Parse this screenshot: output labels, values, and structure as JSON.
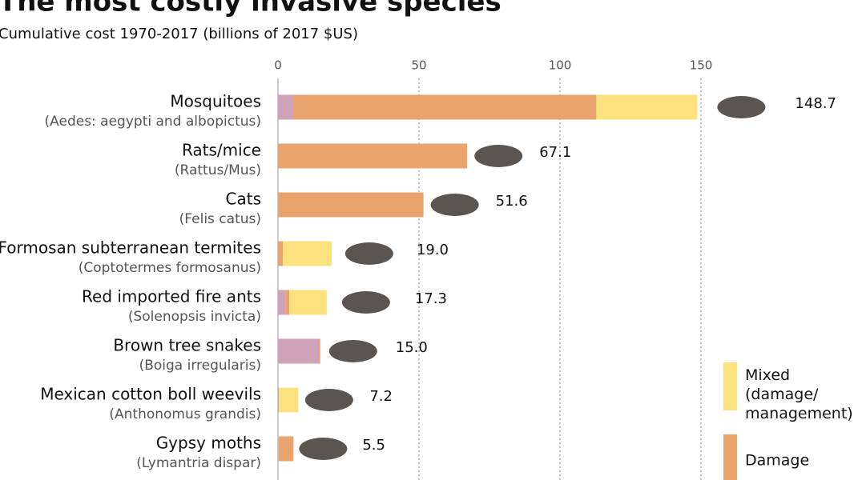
{
  "chart_data": {
    "type": "stacked-barh",
    "title": "The most costly invasive species",
    "subtitle": "Cumulative cost 1970-2017 (billions of 2017 $US)",
    "categories": [
      "Mosquitoes",
      "Rats/mice",
      "Cats",
      "Formosan subterranean termites",
      "Red imported fire ants",
      "Brown tree snakes",
      "Mexican cotton boll weevils",
      "Gypsy moths"
    ],
    "subcategories": [
      "(Aedes: aegypti and albopictus)",
      "(Rattus/Mus)",
      "(Felis catus)",
      "(Coptotermes formosanus)",
      "(Solenopsis invicta)",
      "(Boiga irregularis)",
      "(Anthonomus grandis)",
      "(Lymantria dispar)"
    ],
    "series": [
      {
        "color": "#cfa2b9",
        "values": [
          5.4,
          0,
          0,
          0,
          2.6,
          14.5,
          0.3,
          0.2
        ]
      },
      {
        "name": "Damage",
        "color": "#e9a46e",
        "values": [
          107.5,
          67.1,
          51.6,
          1.7,
          1.4,
          0.5,
          0,
          5.3
        ]
      },
      {
        "name": "Mixed (damage/management)",
        "color": "#fbe27f",
        "values": [
          35.8,
          0,
          0,
          17.3,
          13.3,
          0,
          6.9,
          0
        ]
      }
    ],
    "totals": [
      148.7,
      67.1,
      51.6,
      19.0,
      17.3,
      15.0,
      7.2,
      5.5
    ],
    "total_labels": [
      "148.7",
      "67.1",
      "51.6",
      "19.0",
      "17.3",
      "15.0",
      "7.2",
      "5.5"
    ],
    "xlim": [
      0,
      150
    ],
    "xticks": [
      0,
      50,
      100,
      150
    ],
    "grid": true
  }
}
